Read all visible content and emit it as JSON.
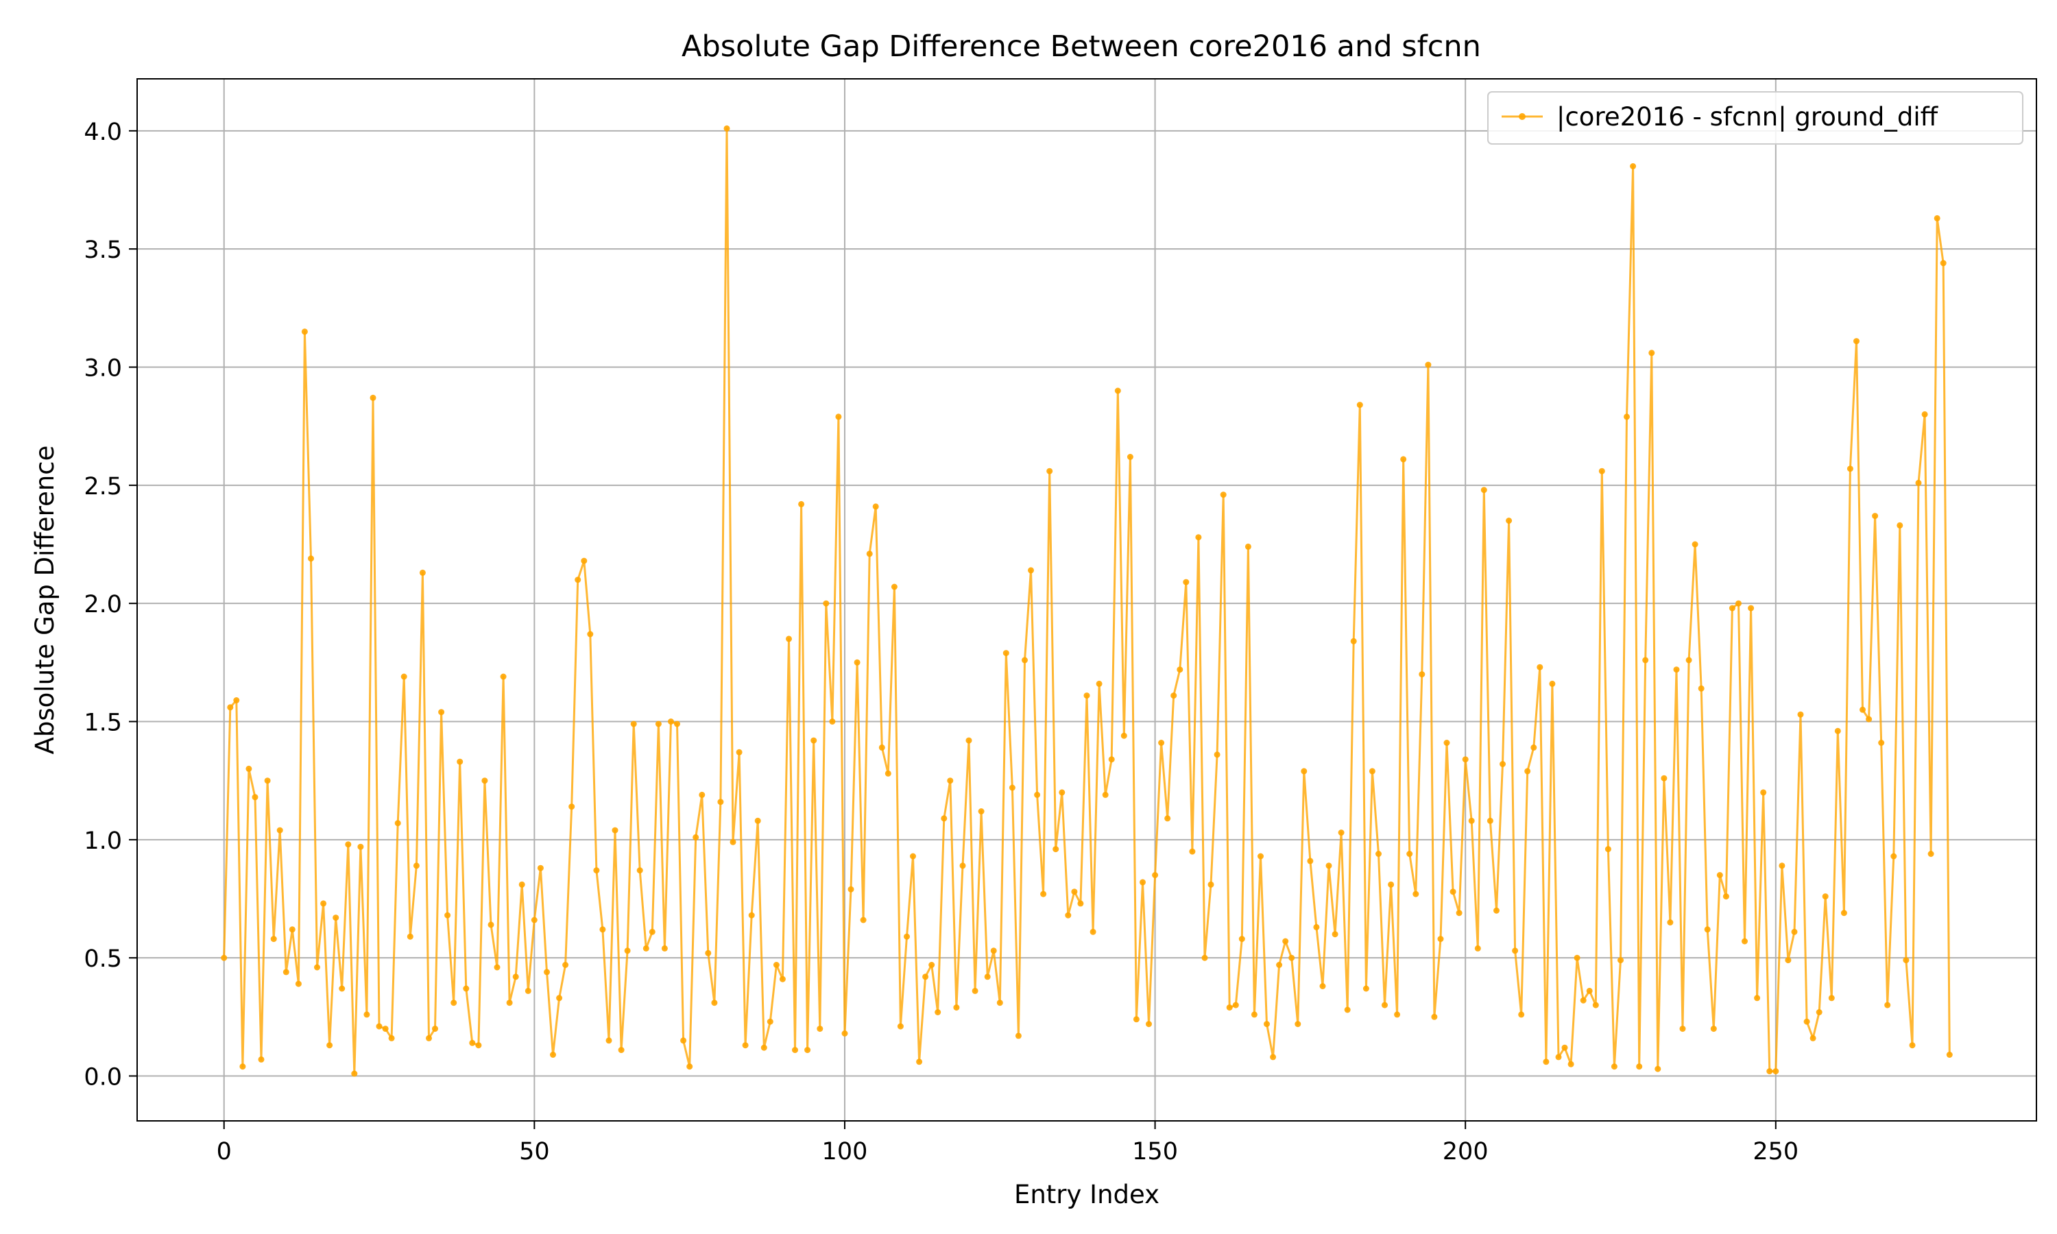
{
  "chart_data": {
    "type": "line",
    "title": "Absolute Gap Difference Between core2016 and sfcnn",
    "xlabel": "Entry Index",
    "ylabel": "Absolute Gap Difference",
    "xlim": [
      -14,
      292
    ],
    "ylim": [
      -0.19,
      4.22
    ],
    "xticks": [
      0,
      50,
      100,
      150,
      200,
      250
    ],
    "xtick_labels": [
      "0",
      "50",
      "100",
      "150",
      "200",
      "250"
    ],
    "yticks": [
      0.0,
      0.5,
      1.0,
      1.5,
      2.0,
      2.5,
      3.0,
      3.5,
      4.0
    ],
    "ytick_labels": [
      "0.0",
      "0.5",
      "1.0",
      "1.5",
      "2.0",
      "2.5",
      "3.0",
      "3.5",
      "4.0"
    ],
    "grid": true,
    "legend_position": "top-right",
    "series": [
      {
        "name": "|core2016 - sfcnn| ground_diff",
        "color": "#FFA500",
        "marker": "circle",
        "values": [
          0.5,
          1.56,
          1.59,
          0.04,
          1.3,
          1.18,
          0.07,
          1.25,
          0.58,
          1.04,
          0.44,
          0.62,
          0.39,
          3.15,
          2.19,
          0.46,
          0.73,
          0.13,
          0.67,
          0.37,
          0.98,
          0.01,
          0.97,
          0.26,
          2.87,
          0.21,
          0.2,
          0.16,
          1.07,
          1.69,
          0.59,
          0.89,
          2.13,
          0.16,
          0.2,
          1.54,
          0.68,
          0.31,
          1.33,
          0.37,
          0.14,
          0.13,
          1.25,
          0.64,
          0.46,
          1.69,
          0.31,
          0.42,
          0.81,
          0.36,
          0.66,
          0.88,
          0.44,
          0.09,
          0.33,
          0.47,
          1.14,
          2.1,
          2.18,
          1.87,
          0.87,
          0.62,
          0.15,
          1.04,
          0.11,
          0.53,
          1.49,
          0.87,
          0.54,
          0.61,
          1.49,
          0.54,
          1.5,
          1.49,
          0.15,
          0.04,
          1.01,
          1.19,
          0.52,
          0.31,
          1.16,
          4.01,
          0.99,
          1.37,
          0.13,
          0.68,
          1.08,
          0.12,
          0.23,
          0.47,
          0.41,
          1.85,
          0.11,
          2.42,
          0.11,
          1.42,
          0.2,
          2.0,
          1.5,
          2.79,
          0.18,
          0.79,
          1.75,
          0.66,
          2.21,
          2.41,
          1.39,
          1.28,
          2.07,
          0.21,
          0.59,
          0.93,
          0.06,
          0.42,
          0.47,
          0.27,
          1.09,
          1.25,
          0.29,
          0.89,
          1.42,
          0.36,
          1.12,
          0.42,
          0.53,
          0.31,
          1.79,
          1.22,
          0.17,
          1.76,
          2.14,
          1.19,
          0.77,
          2.56,
          0.96,
          1.2,
          0.68,
          0.78,
          0.73,
          1.61,
          0.61,
          1.66,
          1.19,
          1.34,
          2.9,
          1.44,
          2.62,
          0.24,
          0.82,
          0.22,
          0.85,
          1.41,
          1.09,
          1.61,
          1.72,
          2.09,
          0.95,
          2.28,
          0.5,
          0.81,
          1.36,
          2.46,
          0.29,
          0.3,
          0.58,
          2.24,
          0.26,
          0.93,
          0.22,
          0.08,
          0.47,
          0.57,
          0.5,
          0.22,
          1.29,
          0.91,
          0.63,
          0.38,
          0.89,
          0.6,
          1.03,
          0.28,
          1.84,
          2.84,
          0.37,
          1.29,
          0.94,
          0.3,
          0.81,
          0.26,
          2.61,
          0.94,
          0.77,
          1.7,
          3.01,
          0.25,
          0.58,
          1.41,
          0.78,
          0.69,
          1.34,
          1.08,
          0.54,
          2.48,
          1.08,
          0.7,
          1.32,
          2.35,
          0.53,
          0.26,
          1.29,
          1.39,
          1.73,
          0.06,
          1.66,
          0.08,
          0.12,
          0.05,
          0.5,
          0.32,
          0.36,
          0.3,
          2.56,
          0.96,
          0.04,
          0.49,
          2.79,
          3.85,
          0.04,
          1.76,
          3.06,
          0.03,
          1.26,
          0.65,
          1.72,
          0.2,
          1.76,
          2.25,
          1.64,
          0.62,
          0.2,
          0.85,
          0.76,
          1.98,
          2.0,
          0.57,
          1.98,
          0.33,
          1.2,
          0.02,
          0.02,
          0.89,
          0.49,
          0.61,
          1.53,
          0.23,
          0.16,
          0.27,
          0.76,
          0.33,
          1.46,
          0.69,
          2.57,
          3.11,
          1.55,
          1.51,
          2.37,
          1.41,
          0.3,
          0.93,
          2.33,
          0.49,
          0.13,
          2.51,
          2.8,
          0.94,
          3.63,
          3.44,
          0.09
        ]
      }
    ]
  }
}
